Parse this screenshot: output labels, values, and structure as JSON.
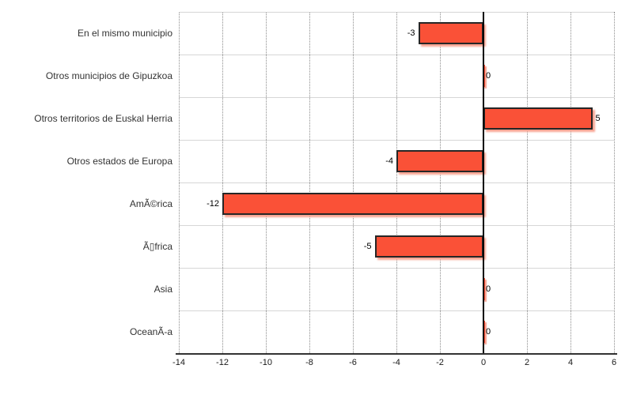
{
  "chart_data": {
    "type": "bar",
    "orientation": "horizontal",
    "title": "",
    "xlabel": "",
    "ylabel": "",
    "legend": "none",
    "grid": "vertical-dotted",
    "categories": [
      "En el mismo municipio",
      "Otros municipios de Gipuzkoa",
      "Otros territorios de Euskal Herria",
      "Otros estados de Europa",
      "AmÃ©rica",
      "Ã▯frica",
      "Asia",
      "OceanÃ-a"
    ],
    "values": [
      -3,
      0,
      5,
      -4,
      -12,
      -5,
      0,
      0
    ],
    "data_labels": [
      "-3",
      "0",
      "5",
      "-4",
      "-12",
      "-5",
      "0",
      "0"
    ],
    "xlim": [
      -14,
      6
    ],
    "xticks": [
      -14,
      -12,
      -10,
      -8,
      -6,
      -4,
      -2,
      0,
      2,
      4,
      6
    ],
    "colors": {
      "bar_fill": "#FA5137",
      "bar_border": "#262626",
      "bar_shadow": "#F7A493",
      "zero_line": "#000000",
      "axis_line": "#333333",
      "gridline": "#8C8C8C",
      "row_separator": "#D6D6D6",
      "category_text": "#333333",
      "value_text": "#000000",
      "tick_text": "#1A1A1A"
    }
  }
}
